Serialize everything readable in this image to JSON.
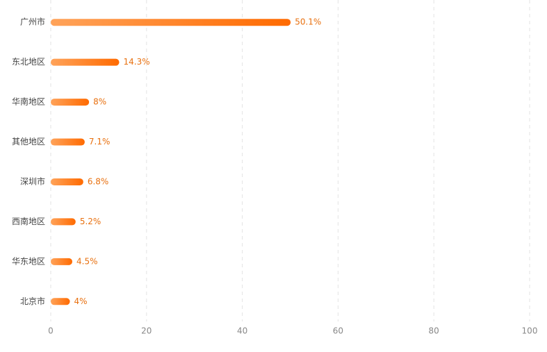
{
  "chart_data": {
    "type": "bar",
    "orientation": "horizontal",
    "categories": [
      "广州市",
      "东北地区",
      "华南地区",
      "其他地区",
      "深圳市",
      "西南地区",
      "华东地区",
      "北京市"
    ],
    "values": [
      50.1,
      14.3,
      8,
      7.1,
      6.8,
      5.2,
      4.5,
      4
    ],
    "value_labels": [
      "50.1%",
      "14.3%",
      "8%",
      "7.1%",
      "6.8%",
      "5.2%",
      "4.5%",
      "4%"
    ],
    "color": "#ff6a00",
    "gradient_start": "#ffa35a",
    "label_color": "#e8700f",
    "xlim": [
      0,
      100
    ],
    "xticks": [
      0,
      20,
      40,
      60,
      80,
      100
    ],
    "grid": true
  }
}
